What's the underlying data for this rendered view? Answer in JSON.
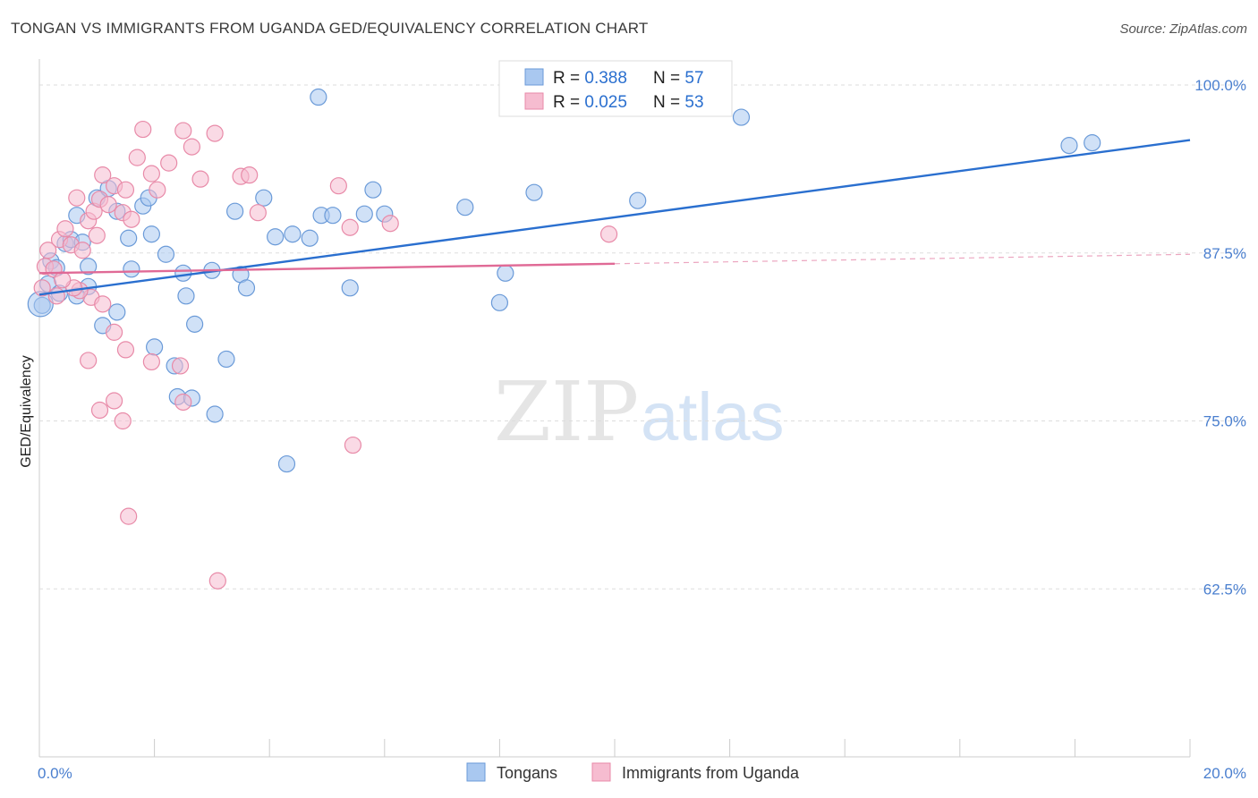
{
  "header": {
    "title": "TONGAN VS IMMIGRANTS FROM UGANDA GED/EQUIVALENCY CORRELATION CHART",
    "source": "Source: ZipAtlas.com"
  },
  "watermark": {
    "zip": "ZIP",
    "atlas": "atlas"
  },
  "legend": {
    "rows": [
      {
        "r_label": "R = ",
        "r_value": "0.388",
        "n_label": "N = ",
        "n_value": "57"
      },
      {
        "r_label": "R = ",
        "r_value": "0.025",
        "n_label": "N = ",
        "n_value": "53"
      }
    ]
  },
  "bottom_legend": [
    "Tongans",
    "Immigrants from Uganda"
  ],
  "colors": {
    "blue_fill": "#a9c8f0",
    "blue_stroke": "#6a9ad8",
    "blue_line": "#2a6fcf",
    "pink_fill": "#f6bcd0",
    "pink_stroke": "#e88aa8",
    "pink_line": "#e06a96",
    "tick_text": "#4a7fcf",
    "grid": "#dddddd"
  },
  "chart_data": {
    "type": "scatter",
    "xlabel": "",
    "ylabel": "GED/Equivalency",
    "xlim": [
      0,
      20
    ],
    "ylim": [
      50,
      101
    ],
    "x_ticks": [
      0,
      20
    ],
    "x_tick_labels": [
      "0.0%",
      "20.0%"
    ],
    "y_ticks": [
      100,
      87.5,
      75,
      62.5
    ],
    "y_tick_labels": [
      "100.0%",
      "87.5%",
      "75.0%",
      "62.5%"
    ],
    "grid": true,
    "series": [
      {
        "name": "Tongans",
        "color": "#a9c8f0",
        "points": [
          [
            0.05,
            83.6
          ],
          [
            0.15,
            85.2
          ],
          [
            0.2,
            86.9
          ],
          [
            0.3,
            86.4
          ],
          [
            0.35,
            84.5
          ],
          [
            0.45,
            88.2
          ],
          [
            0.55,
            88.5
          ],
          [
            0.65,
            90.3
          ],
          [
            0.75,
            88.3
          ],
          [
            0.85,
            86.5
          ],
          [
            1.0,
            91.6
          ],
          [
            1.2,
            92.3
          ],
          [
            1.35,
            90.6
          ],
          [
            1.55,
            88.6
          ],
          [
            1.6,
            86.3
          ],
          [
            1.8,
            91.0
          ],
          [
            1.9,
            91.6
          ],
          [
            1.95,
            88.9
          ],
          [
            2.2,
            87.4
          ],
          [
            2.5,
            86.0
          ],
          [
            2.55,
            84.3
          ],
          [
            3.0,
            86.2
          ],
          [
            3.4,
            90.6
          ],
          [
            3.5,
            85.9
          ],
          [
            3.6,
            84.9
          ],
          [
            3.9,
            91.6
          ],
          [
            4.1,
            88.7
          ],
          [
            4.4,
            88.9
          ],
          [
            4.7,
            88.6
          ],
          [
            4.9,
            90.3
          ],
          [
            5.1,
            90.3
          ],
          [
            5.4,
            84.9
          ],
          [
            5.65,
            90.4
          ],
          [
            5.8,
            92.2
          ],
          [
            6.0,
            90.4
          ],
          [
            7.4,
            90.9
          ],
          [
            8.0,
            83.8
          ],
          [
            8.1,
            86.0
          ],
          [
            8.6,
            92.0
          ],
          [
            10.4,
            91.4
          ],
          [
            0.85,
            85.0
          ],
          [
            0.65,
            84.3
          ],
          [
            1.1,
            82.1
          ],
          [
            1.35,
            83.1
          ],
          [
            2.0,
            80.5
          ],
          [
            2.35,
            79.1
          ],
          [
            2.7,
            82.2
          ],
          [
            3.25,
            79.6
          ],
          [
            2.4,
            76.8
          ],
          [
            2.65,
            76.7
          ],
          [
            3.05,
            75.5
          ],
          [
            4.3,
            71.8
          ],
          [
            4.85,
            99.1
          ],
          [
            12.2,
            97.6
          ],
          [
            17.9,
            95.5
          ],
          [
            18.3,
            95.7
          ],
          [
            0.02,
            83.7
          ]
        ]
      },
      {
        "name": "Immigrants from Uganda",
        "color": "#f6bcd0",
        "points": [
          [
            0.05,
            84.9
          ],
          [
            0.1,
            86.5
          ],
          [
            0.15,
            87.7
          ],
          [
            0.25,
            86.3
          ],
          [
            0.35,
            88.5
          ],
          [
            0.45,
            89.3
          ],
          [
            0.55,
            88.1
          ],
          [
            0.65,
            91.6
          ],
          [
            0.75,
            87.7
          ],
          [
            0.85,
            89.9
          ],
          [
            0.95,
            90.6
          ],
          [
            1.05,
            91.5
          ],
          [
            1.1,
            93.3
          ],
          [
            1.2,
            91.1
          ],
          [
            1.3,
            92.5
          ],
          [
            1.45,
            90.5
          ],
          [
            1.5,
            92.2
          ],
          [
            1.6,
            90.0
          ],
          [
            1.7,
            94.6
          ],
          [
            1.8,
            96.7
          ],
          [
            1.95,
            93.4
          ],
          [
            2.05,
            92.2
          ],
          [
            2.25,
            94.2
          ],
          [
            2.5,
            96.6
          ],
          [
            2.65,
            95.4
          ],
          [
            2.8,
            93.0
          ],
          [
            3.05,
            96.4
          ],
          [
            3.5,
            93.2
          ],
          [
            3.65,
            93.3
          ],
          [
            3.8,
            90.5
          ],
          [
            5.2,
            92.5
          ],
          [
            5.4,
            89.4
          ],
          [
            6.1,
            89.7
          ],
          [
            9.9,
            88.9
          ],
          [
            0.9,
            84.2
          ],
          [
            1.1,
            83.7
          ],
          [
            1.3,
            81.6
          ],
          [
            1.5,
            80.3
          ],
          [
            1.95,
            79.4
          ],
          [
            2.45,
            79.1
          ],
          [
            0.85,
            79.5
          ],
          [
            1.05,
            75.8
          ],
          [
            1.3,
            76.5
          ],
          [
            1.45,
            75.0
          ],
          [
            2.5,
            76.4
          ],
          [
            5.45,
            73.2
          ],
          [
            1.55,
            67.9
          ],
          [
            3.1,
            63.1
          ],
          [
            0.7,
            84.7
          ],
          [
            0.6,
            84.9
          ],
          [
            1.0,
            88.8
          ],
          [
            0.3,
            84.3
          ],
          [
            0.4,
            85.5
          ]
        ]
      }
    ],
    "trend_lines": [
      {
        "series": "Tongans",
        "x": [
          0,
          20
        ],
        "y": [
          84.4,
          95.9
        ],
        "style": "solid"
      },
      {
        "series": "Immigrants from Uganda",
        "x": [
          0,
          10
        ],
        "y": [
          86.0,
          86.7
        ],
        "style": "solid"
      },
      {
        "series": "Immigrants from Uganda",
        "x": [
          10,
          20
        ],
        "y": [
          86.7,
          87.4
        ],
        "style": "dashed"
      }
    ]
  }
}
